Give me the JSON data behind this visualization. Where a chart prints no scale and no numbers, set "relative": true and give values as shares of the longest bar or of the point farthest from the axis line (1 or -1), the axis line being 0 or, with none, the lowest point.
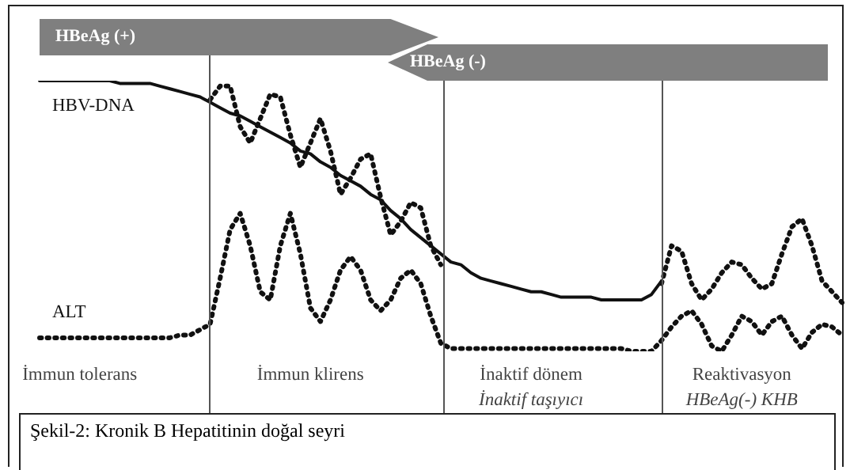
{
  "chart_data": {
    "type": "line",
    "relative": true,
    "legend": false,
    "marker": "none",
    "categories": [
      null,
      null,
      null,
      null,
      "İmmun tolerans",
      null,
      null,
      null,
      null,
      null,
      null,
      null,
      null,
      null,
      null,
      null,
      null,
      null,
      null,
      null,
      null,
      null,
      null,
      null,
      null,
      null,
      null,
      "İmmun klirens",
      null,
      null,
      null,
      null,
      null,
      null,
      null,
      null,
      null,
      null,
      null,
      null,
      null,
      null,
      null,
      null,
      null,
      null,
      null,
      null,
      null,
      "İnaktif dönem\nİnaktif taşıyıcı",
      null,
      null,
      null,
      null,
      null,
      null,
      null,
      null,
      null,
      null,
      null,
      null,
      null,
      null,
      null,
      null,
      null,
      null,
      null,
      null,
      "Reaktivasyon\nHBeAg(-) KHB",
      null,
      null,
      null,
      null,
      null,
      null,
      null,
      null,
      null,
      null
    ],
    "series": [
      {
        "name": "HBV-DNA",
        "color": "#111111",
        "line_style": "solid",
        "values": [
          1.0,
          1.0,
          1.0,
          1.0,
          1.0,
          1.0,
          1.0,
          1.0,
          0.99,
          0.99,
          0.99,
          0.99,
          0.98,
          0.97,
          0.96,
          0.95,
          0.94,
          0.92,
          0.9,
          0.88,
          0.87,
          0.85,
          0.83,
          0.81,
          0.79,
          0.77,
          0.74,
          0.73,
          0.7,
          0.68,
          0.65,
          0.63,
          0.61,
          0.58,
          0.56,
          0.52,
          0.49,
          0.45,
          0.42,
          0.39,
          0.36,
          0.33,
          0.32,
          0.29,
          0.27,
          0.26,
          0.25,
          0.24,
          0.23,
          0.22,
          0.22,
          0.21,
          0.2,
          0.2,
          0.2,
          0.2,
          0.19,
          0.19,
          0.19,
          0.19,
          0.19,
          0.21,
          0.26,
          null,
          null,
          null,
          null,
          null,
          null,
          null,
          null,
          null,
          null,
          null,
          null,
          null,
          null,
          null,
          null,
          null,
          null
        ]
      },
      {
        "color": "#111111",
        "line_style": "dotted",
        "values": [
          null,
          null,
          null,
          null,
          null,
          null,
          null,
          null,
          null,
          null,
          null,
          null,
          null,
          null,
          null,
          null,
          null,
          0.93,
          0.98,
          0.98,
          0.83,
          0.77,
          0.86,
          0.95,
          0.94,
          0.8,
          0.68,
          0.77,
          0.86,
          0.74,
          0.58,
          0.64,
          0.71,
          0.73,
          0.57,
          0.43,
          0.48,
          0.55,
          0.53,
          0.39,
          0.32,
          null,
          null,
          null,
          null,
          null,
          null,
          null,
          null,
          null,
          null,
          null,
          null,
          null,
          null,
          null,
          null,
          null,
          null,
          null,
          null,
          null,
          0.25,
          0.39,
          0.37,
          0.25,
          0.19,
          0.23,
          0.29,
          0.33,
          0.32,
          0.27,
          0.23,
          0.25,
          0.36,
          0.46,
          0.49,
          0.39,
          0.26,
          0.22,
          0.18
        ]
      },
      {
        "name": "ALT",
        "color": "#111111",
        "line_style": "dotted",
        "values": [
          0.05,
          0.05,
          0.05,
          0.05,
          0.05,
          0.05,
          0.05,
          0.05,
          0.05,
          0.05,
          0.05,
          0.05,
          0.05,
          0.05,
          0.06,
          0.06,
          0.08,
          0.1,
          0.27,
          0.45,
          0.51,
          0.39,
          0.22,
          0.19,
          0.39,
          0.51,
          0.36,
          0.16,
          0.11,
          0.19,
          0.3,
          0.35,
          0.3,
          0.19,
          0.15,
          0.19,
          0.27,
          0.3,
          0.25,
          0.13,
          0.03,
          0.01,
          0.01,
          0.01,
          0.01,
          0.01,
          0.01,
          0.01,
          0.01,
          0.01,
          0.01,
          0.01,
          0.01,
          0.01,
          0.01,
          0.01,
          0.01,
          0.01,
          0.01,
          0.0,
          0.0,
          0.0,
          0.04,
          0.09,
          0.13,
          0.15,
          0.1,
          0.02,
          0.0,
          0.06,
          0.13,
          0.11,
          0.06,
          0.11,
          0.13,
          0.06,
          0.01,
          0.07,
          0.1,
          0.09,
          0.06
        ]
      }
    ],
    "annotations": [
      "HBeAg (+)",
      "HBeAg (-)",
      "Şekil-2: Kronik B Hepatitinin doğal seyri"
    ]
  }
}
